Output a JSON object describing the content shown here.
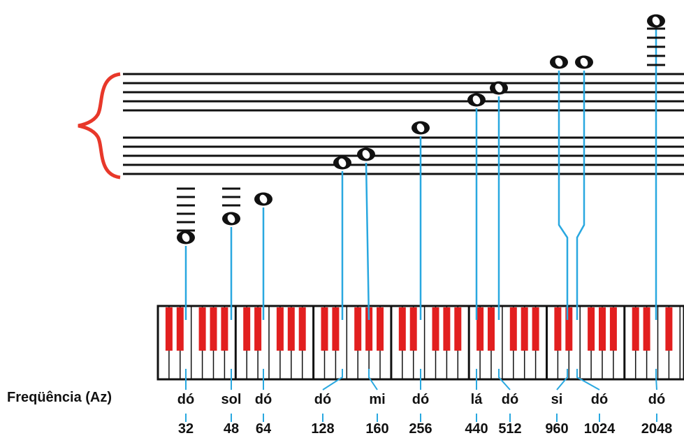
{
  "colors": {
    "staff_lines": "#111111",
    "brace": "#e8382a",
    "connector": "#29a8e0",
    "black_keys": "#e21f1f",
    "white_keys": "#ffffff",
    "text": "#111111"
  },
  "freq_label": "Freqüência (Az)",
  "notes": [
    {
      "name": "dó",
      "freq": "32"
    },
    {
      "name": "sol",
      "freq": "48"
    },
    {
      "name": "dó",
      "freq": "64"
    },
    {
      "name": "dó",
      "freq": "128"
    },
    {
      "name": "mi",
      "freq": "160"
    },
    {
      "name": "dó",
      "freq": "256"
    },
    {
      "name": "lá",
      "freq": "440"
    },
    {
      "name": "dó",
      "freq": "512"
    },
    {
      "name": "si",
      "freq": "960"
    },
    {
      "name": "dó",
      "freq": "1024"
    },
    {
      "name": "dó",
      "freq": "2048"
    }
  ]
}
